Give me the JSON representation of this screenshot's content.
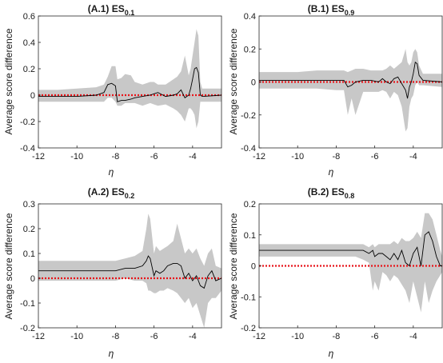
{
  "chart_data": [
    {
      "type": "line",
      "title": "(A.1) ES",
      "title_subscript": "0.1",
      "xlabel": "η",
      "ylabel": "Average score difference",
      "xlim": [
        -12,
        -2.5
      ],
      "ylim": [
        -0.4,
        0.6
      ],
      "xticks": [
        "-12",
        "-10",
        "-8",
        "-6",
        "-4"
      ],
      "yticks": [
        "-0.4",
        "-0.2",
        "0",
        "0.2",
        "0.4",
        "0.6"
      ],
      "xtick_values": [
        -12,
        -10,
        -8,
        -6,
        -4
      ],
      "ytick_values": [
        -0.4,
        -0.2,
        0,
        0.2,
        0.4,
        0.6
      ],
      "reference_line": 0,
      "colors": {
        "mean": "#000000",
        "band": "#c8c8c8",
        "reference": "#e8141a"
      },
      "x": [
        -12,
        -11,
        -10,
        -9,
        -8.6,
        -8.4,
        -8.2,
        -8.0,
        -7.9,
        -7.7,
        -7.5,
        -7.2,
        -7.0,
        -6.6,
        -6.2,
        -6.0,
        -5.8,
        -5.4,
        -5.0,
        -4.8,
        -4.6,
        -4.4,
        -4.2,
        -4.1,
        -4.0,
        -3.9,
        -3.8,
        -3.7,
        -3.6,
        -3.5,
        -2.5
      ],
      "mean": [
        -0.01,
        -0.01,
        -0.01,
        0.0,
        0.02,
        0.08,
        0.09,
        0.07,
        -0.05,
        -0.04,
        -0.04,
        -0.03,
        -0.02,
        -0.01,
        0.0,
        0.01,
        0.02,
        -0.01,
        0.0,
        0.01,
        0.04,
        -0.02,
        0.0,
        0.05,
        0.12,
        0.2,
        0.21,
        0.17,
        0.0,
        -0.01,
        0.0
      ],
      "upper": [
        0.04,
        0.04,
        0.05,
        0.06,
        0.08,
        0.14,
        0.22,
        0.22,
        0.12,
        0.13,
        0.16,
        0.15,
        0.1,
        0.08,
        0.1,
        0.1,
        0.08,
        0.08,
        0.12,
        0.14,
        0.18,
        0.3,
        0.15,
        0.2,
        0.3,
        0.4,
        0.5,
        0.45,
        0.1,
        0.05,
        0.05
      ],
      "lower": [
        -0.05,
        -0.05,
        -0.05,
        -0.05,
        -0.05,
        -0.02,
        -0.02,
        -0.05,
        -0.08,
        -0.08,
        -0.06,
        -0.06,
        -0.06,
        -0.08,
        -0.06,
        -0.07,
        -0.08,
        -0.07,
        -0.1,
        -0.12,
        -0.15,
        -0.2,
        -0.1,
        -0.1,
        -0.12,
        -0.15,
        -0.25,
        -0.2,
        -0.05,
        -0.05,
        -0.05
      ]
    },
    {
      "type": "line",
      "title": "(B.1) ES",
      "title_subscript": "0.9",
      "xlabel": "η",
      "ylabel": "Average score difference",
      "xlim": [
        -12,
        -2.5
      ],
      "ylim": [
        -0.4,
        0.4
      ],
      "xticks": [
        "-12",
        "-10",
        "-8",
        "-6",
        "-4"
      ],
      "yticks": [
        "-0.4",
        "-0.2",
        "0",
        "0.2",
        "0.4"
      ],
      "xtick_values": [
        -12,
        -10,
        -8,
        -6,
        -4
      ],
      "ytick_values": [
        -0.4,
        -0.2,
        0,
        0.2,
        0.4
      ],
      "reference_line": 0,
      "colors": {
        "mean": "#000000",
        "band": "#c8c8c8",
        "reference": "#e8141a"
      },
      "x": [
        -12,
        -11,
        -10,
        -9,
        -8,
        -7.6,
        -7.4,
        -7.2,
        -7.0,
        -6.6,
        -6.2,
        -5.8,
        -5.6,
        -5.4,
        -5.2,
        -5.0,
        -4.8,
        -4.6,
        -4.4,
        -4.3,
        -4.2,
        -4.1,
        -4.0,
        -3.9,
        -3.8,
        -3.7,
        -3.5,
        -2.5
      ],
      "mean": [
        0.01,
        0.01,
        0.01,
        0.01,
        0.01,
        0.01,
        -0.03,
        -0.02,
        0.0,
        0.01,
        0.01,
        0.0,
        0.02,
        0.0,
        -0.01,
        0.02,
        0.03,
        -0.01,
        -0.05,
        -0.1,
        -0.03,
        0.0,
        0.05,
        0.12,
        0.11,
        0.04,
        0.01,
        0.0
      ],
      "upper": [
        0.06,
        0.06,
        0.06,
        0.07,
        0.07,
        0.07,
        0.06,
        0.07,
        0.08,
        0.08,
        0.07,
        0.07,
        0.07,
        0.08,
        0.1,
        0.08,
        0.1,
        0.12,
        0.2,
        0.12,
        0.1,
        0.12,
        0.18,
        0.2,
        0.18,
        0.1,
        0.05,
        0.05
      ],
      "lower": [
        -0.04,
        -0.04,
        -0.04,
        -0.04,
        -0.05,
        -0.05,
        -0.2,
        -0.1,
        -0.2,
        -0.06,
        -0.06,
        -0.06,
        -0.05,
        -0.06,
        -0.1,
        -0.06,
        -0.08,
        -0.15,
        -0.3,
        -0.28,
        -0.15,
        -0.1,
        -0.08,
        -0.02,
        0.0,
        -0.02,
        -0.02,
        -0.03
      ]
    },
    {
      "type": "line",
      "title": "(A.2) ES",
      "title_subscript": "0.2",
      "xlabel": "η",
      "ylabel": "Average score difference",
      "xlim": [
        -12,
        -2.5
      ],
      "ylim": [
        -0.2,
        0.3
      ],
      "xticks": [
        "-12",
        "-10",
        "-8",
        "-6",
        "-4"
      ],
      "yticks": [
        "-0.2",
        "-0.1",
        "0",
        "0.1",
        "0.2",
        "0.3"
      ],
      "xtick_values": [
        -12,
        -10,
        -8,
        -6,
        -4
      ],
      "ytick_values": [
        -0.2,
        -0.1,
        0,
        0.1,
        0.2,
        0.3
      ],
      "reference_line": 0,
      "colors": {
        "mean": "#000000",
        "band": "#c8c8c8",
        "reference": "#e8141a"
      },
      "x": [
        -12,
        -11,
        -10,
        -9,
        -8,
        -7.5,
        -7.0,
        -6.6,
        -6.4,
        -6.3,
        -6.2,
        -6.0,
        -5.9,
        -5.7,
        -5.5,
        -5.3,
        -5.0,
        -4.8,
        -4.6,
        -4.4,
        -4.2,
        -4.0,
        -3.8,
        -3.6,
        -3.4,
        -3.2,
        -3.0,
        -2.8,
        -2.5
      ],
      "mean": [
        0.03,
        0.03,
        0.03,
        0.03,
        0.03,
        0.04,
        0.04,
        0.05,
        0.07,
        0.09,
        0.08,
        0.01,
        0.03,
        0.02,
        0.03,
        0.05,
        0.06,
        0.06,
        0.05,
        0.0,
        0.02,
        -0.01,
        0.01,
        -0.03,
        -0.04,
        0.01,
        0.03,
        -0.01,
        0.0
      ],
      "upper": [
        0.07,
        0.07,
        0.07,
        0.07,
        0.07,
        0.08,
        0.09,
        0.11,
        0.2,
        0.26,
        0.24,
        0.1,
        0.13,
        0.11,
        0.12,
        0.13,
        0.15,
        0.22,
        0.16,
        0.1,
        0.12,
        0.1,
        0.12,
        0.08,
        0.05,
        0.1,
        0.12,
        0.05,
        0.04
      ],
      "lower": [
        -0.01,
        -0.01,
        -0.01,
        -0.01,
        -0.01,
        0.0,
        -0.01,
        -0.01,
        -0.02,
        -0.05,
        -0.05,
        -0.06,
        -0.06,
        -0.05,
        -0.05,
        -0.04,
        -0.05,
        -0.06,
        -0.08,
        -0.1,
        -0.08,
        -0.12,
        -0.1,
        -0.15,
        -0.2,
        -0.1,
        -0.08,
        -0.08,
        -0.05
      ]
    },
    {
      "type": "line",
      "title": "(B.2) ES",
      "title_subscript": "0.8",
      "xlabel": "η",
      "ylabel": "Average score difference",
      "xlim": [
        -12,
        -2.5
      ],
      "ylim": [
        -0.2,
        0.2
      ],
      "xticks": [
        "-12",
        "-10",
        "-8",
        "-6",
        "-4"
      ],
      "yticks": [
        "-0.2",
        "-0.1",
        "0",
        "0.1",
        "0.2"
      ],
      "xtick_values": [
        -12,
        -10,
        -8,
        -6,
        -4
      ],
      "ytick_values": [
        -0.2,
        -0.1,
        0,
        0.1,
        0.2
      ],
      "reference_line": 0,
      "colors": {
        "mean": "#000000",
        "band": "#c8c8c8",
        "reference": "#e8141a"
      },
      "x": [
        -12,
        -11,
        -10,
        -9,
        -8,
        -7,
        -6.6,
        -6.3,
        -6.1,
        -6.0,
        -5.8,
        -5.6,
        -5.4,
        -5.2,
        -5.0,
        -4.8,
        -4.6,
        -4.4,
        -4.2,
        -4.0,
        -3.8,
        -3.6,
        -3.4,
        -3.2,
        -3.0,
        -2.8,
        -2.6,
        -2.5
      ],
      "mean": [
        0.05,
        0.05,
        0.05,
        0.05,
        0.05,
        0.05,
        0.05,
        0.04,
        0.05,
        0.03,
        0.04,
        0.04,
        0.03,
        0.02,
        0.04,
        0.02,
        0.05,
        0.01,
        0.0,
        0.04,
        0.06,
        0.0,
        0.1,
        0.11,
        0.08,
        0.03,
        0.0,
        0.0
      ],
      "upper": [
        0.07,
        0.07,
        0.07,
        0.07,
        0.07,
        0.07,
        0.07,
        0.06,
        0.07,
        0.06,
        0.07,
        0.07,
        0.07,
        0.07,
        0.08,
        0.07,
        0.09,
        0.08,
        0.08,
        0.09,
        0.11,
        0.09,
        0.17,
        0.17,
        0.15,
        0.1,
        0.05,
        0.03
      ],
      "lower": [
        0.03,
        0.03,
        0.03,
        0.03,
        0.03,
        0.03,
        0.02,
        0.01,
        -0.08,
        -0.05,
        -0.08,
        -0.02,
        -0.03,
        -0.05,
        -0.03,
        -0.04,
        -0.06,
        -0.08,
        -0.12,
        -0.05,
        -0.1,
        -0.15,
        -0.05,
        -0.12,
        -0.08,
        -0.05,
        -0.03,
        -0.02
      ]
    }
  ]
}
